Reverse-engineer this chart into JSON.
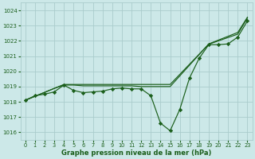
{
  "xlabel": "Graphe pression niveau de la mer (hPa)",
  "background_color": "#cce8e8",
  "grid_color": "#aacccc",
  "line_color": "#1a5e1a",
  "ylim": [
    1015.5,
    1024.5
  ],
  "xlim": [
    -0.5,
    23.5
  ],
  "yticks": [
    1016,
    1017,
    1018,
    1019,
    1020,
    1021,
    1022,
    1023,
    1024
  ],
  "xticks": [
    0,
    1,
    2,
    3,
    4,
    5,
    6,
    7,
    8,
    9,
    10,
    11,
    12,
    13,
    14,
    15,
    16,
    17,
    18,
    19,
    20,
    21,
    22,
    23
  ],
  "series_main": [
    1018.1,
    1018.4,
    1018.5,
    1018.65,
    1019.1,
    1018.75,
    1018.6,
    1018.65,
    1018.7,
    1018.85,
    1018.9,
    1018.85,
    1018.85,
    1018.4,
    1016.6,
    1016.1,
    1017.5,
    1019.55,
    1020.85,
    1021.75,
    1021.75,
    1021.8,
    1022.25,
    1023.3
  ],
  "series_linear1": [
    1018.1,
    1018.36,
    1018.62,
    1018.88,
    1019.14,
    1019.14,
    1019.14,
    1019.14,
    1019.14,
    1019.14,
    1019.14,
    1019.14,
    1019.14,
    1019.14,
    1019.14,
    1019.14,
    1019.8,
    1020.46,
    1021.12,
    1021.78,
    1022.0,
    1022.22,
    1022.44,
    1023.5
  ],
  "series_linear2": [
    1018.1,
    1018.36,
    1018.62,
    1018.88,
    1019.1,
    1019.1,
    1019.05,
    1019.05,
    1019.05,
    1019.05,
    1019.05,
    1019.05,
    1019.0,
    1019.0,
    1019.0,
    1019.0,
    1019.7,
    1020.4,
    1021.1,
    1021.8,
    1022.05,
    1022.3,
    1022.55,
    1023.55
  ],
  "marker_series": [
    1018.1,
    1018.4,
    1018.5,
    1018.65,
    1019.1,
    1018.75,
    1018.6,
    1018.65,
    1018.7,
    1018.85,
    1018.9,
    1018.85,
    1018.85,
    1018.4,
    1016.6,
    1016.1,
    1017.5,
    1019.55,
    1020.85,
    1021.75,
    1021.75,
    1021.8,
    1022.25,
    1023.3
  ]
}
